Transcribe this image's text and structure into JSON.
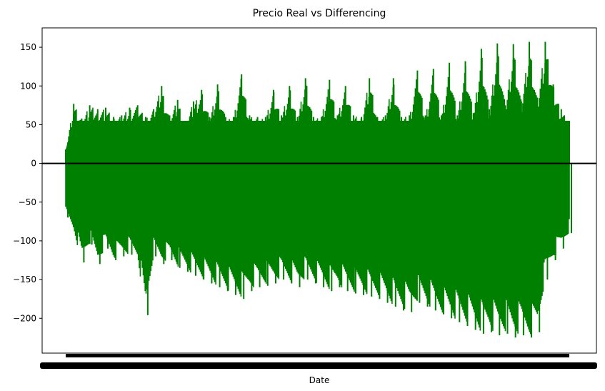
{
  "chart_data": {
    "type": "line",
    "title": "Precio Real vs Differencing",
    "xlabel": "Date",
    "ylabel": "",
    "ylim": [
      -245,
      175
    ],
    "yticks": [
      150,
      100,
      50,
      0,
      -50,
      -100,
      -150,
      -200
    ],
    "reference_line": {
      "y": 0,
      "color": "#000000"
    },
    "series": [
      {
        "color": "#008000",
        "envelope": {
          "points": 64,
          "upper": [
            18,
            77,
            58,
            75,
            70,
            72,
            60,
            62,
            72,
            75,
            60,
            70,
            100,
            62,
            82,
            55,
            80,
            95,
            60,
            102,
            60,
            60,
            115,
            62,
            60,
            60,
            95,
            62,
            100,
            60,
            110,
            60,
            60,
            108,
            62,
            100,
            62,
            60,
            110,
            60,
            62,
            110,
            60,
            62,
            120,
            62,
            122,
            62,
            130,
            62,
            132,
            65,
            148,
            70,
            155,
            75,
            154,
            80,
            157,
            85,
            157,
            102,
            70,
            55
          ],
          "lower": [
            -70,
            -90,
            -128,
            -105,
            -130,
            -110,
            -125,
            -120,
            -118,
            -125,
            -196,
            -120,
            -130,
            -125,
            -135,
            -140,
            -145,
            -150,
            -155,
            -160,
            -165,
            -170,
            -175,
            -165,
            -160,
            -158,
            -155,
            -150,
            -155,
            -160,
            -150,
            -155,
            -160,
            -165,
            -160,
            -165,
            -168,
            -170,
            -172,
            -175,
            -180,
            -185,
            -190,
            -192,
            -180,
            -185,
            -190,
            -195,
            -200,
            -205,
            -210,
            -215,
            -220,
            -218,
            -222,
            -220,
            -225,
            -222,
            -225,
            -218,
            -150,
            -125,
            -110,
            -90
          ]
        }
      }
    ]
  }
}
